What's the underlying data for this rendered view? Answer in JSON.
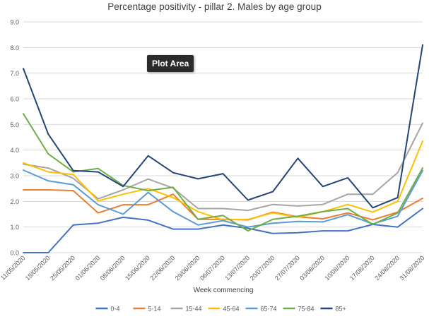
{
  "chart_data": {
    "type": "line",
    "title": "Percentage positivity - pillar 2. Males by age group",
    "xlabel": "Week commencing",
    "ylabel": "",
    "ylim": [
      0,
      9
    ],
    "yticks": [
      "0.0",
      "1.0",
      "2.0",
      "3.0",
      "4.0",
      "5.0",
      "6.0",
      "7.0",
      "8.0",
      "9.0"
    ],
    "categories": [
      "11/05/2020",
      "18/05/2020",
      "25/05/2020",
      "01/06/2020",
      "08/06/2020",
      "15/06/2020",
      "22/06/2020",
      "29/06/2020",
      "06/07/2020",
      "13/07/2020",
      "20/07/2020",
      "27/07/2020",
      "03/08/2020",
      "10/08/2020",
      "17/08/2020",
      "24/08/2020",
      "31/08/2020"
    ],
    "grid": true,
    "legend_position": "bottom",
    "series": [
      {
        "name": "0-4",
        "color": "#4472c4",
        "values": [
          0.0,
          0.0,
          1.08,
          1.15,
          1.38,
          1.27,
          0.92,
          0.92,
          1.08,
          0.95,
          0.75,
          0.78,
          0.85,
          0.85,
          1.1,
          1.0,
          1.72
        ]
      },
      {
        "name": "5-14",
        "color": "#ed7d31",
        "values": [
          2.45,
          2.45,
          2.42,
          1.55,
          1.87,
          1.87,
          2.28,
          1.3,
          1.3,
          1.28,
          1.58,
          1.4,
          1.32,
          1.55,
          1.28,
          1.58,
          2.12
        ]
      },
      {
        "name": "15-44",
        "color": "#a5a5a5",
        "values": [
          3.45,
          3.3,
          2.9,
          2.1,
          2.45,
          2.87,
          2.52,
          1.72,
          1.72,
          1.65,
          1.88,
          1.82,
          1.88,
          2.28,
          2.28,
          3.12,
          5.05
        ]
      },
      {
        "name": "45-64",
        "color": "#ffc000",
        "values": [
          3.5,
          3.15,
          3.05,
          2.02,
          2.28,
          2.5,
          2.15,
          1.6,
          1.28,
          1.3,
          1.55,
          1.38,
          1.6,
          1.88,
          1.58,
          2.0,
          4.35
        ]
      },
      {
        "name": "65-74",
        "color": "#5b9bd5",
        "values": [
          3.22,
          2.8,
          2.65,
          1.87,
          1.5,
          2.35,
          1.6,
          1.08,
          1.25,
          1.0,
          1.15,
          1.22,
          1.2,
          1.48,
          1.12,
          1.42,
          3.2
        ]
      },
      {
        "name": "75-84",
        "color": "#70ad47",
        "values": [
          5.42,
          3.85,
          3.15,
          3.28,
          2.62,
          2.42,
          2.55,
          1.3,
          1.45,
          0.85,
          1.3,
          1.42,
          1.6,
          1.72,
          1.1,
          1.55,
          3.3
        ]
      },
      {
        "name": "85+",
        "color": "#264478",
        "values": [
          7.18,
          4.62,
          3.2,
          3.15,
          2.58,
          3.78,
          3.12,
          2.88,
          3.08,
          2.05,
          2.38,
          3.68,
          2.58,
          2.92,
          1.75,
          2.15,
          8.1
        ]
      }
    ]
  },
  "tooltip": "Plot Area"
}
